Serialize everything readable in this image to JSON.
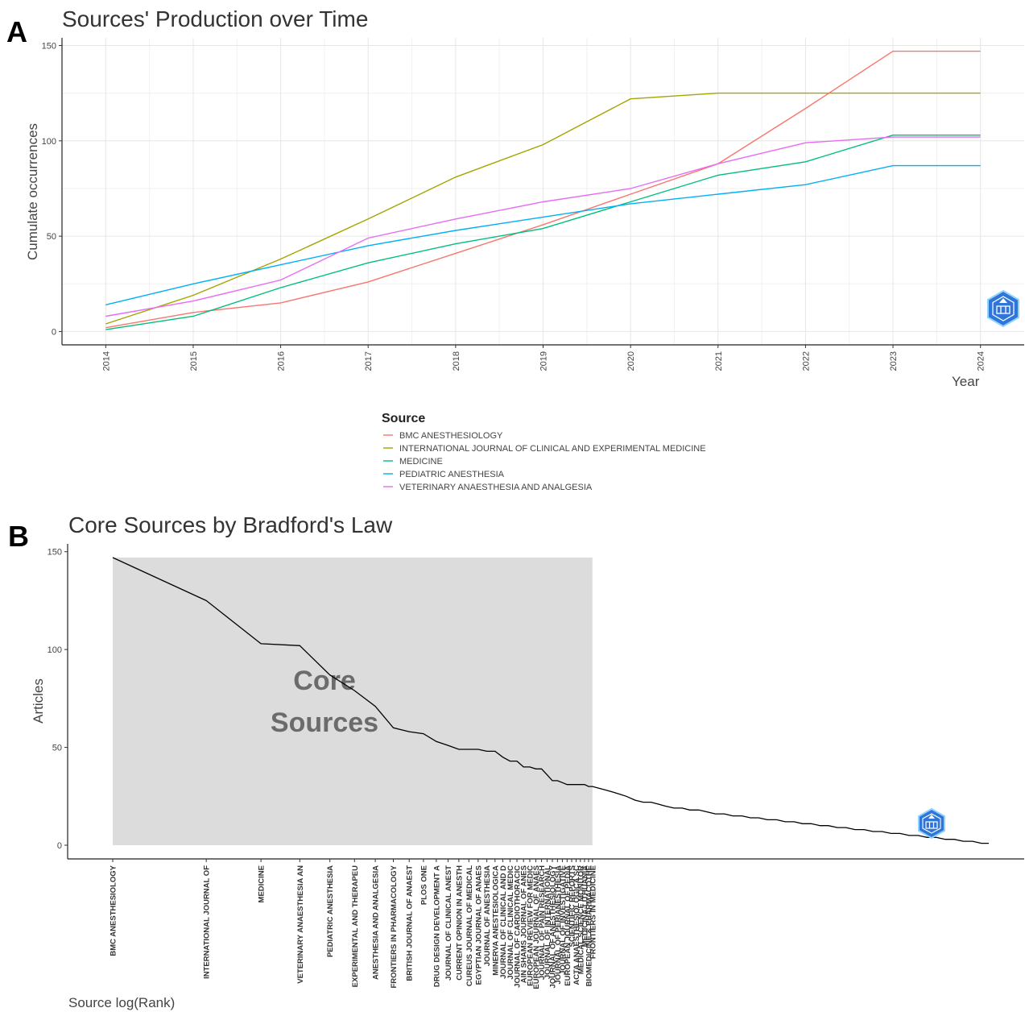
{
  "panels": {
    "a_letter": "A",
    "b_letter": "B"
  },
  "chart_data": [
    {
      "type": "line",
      "title": "Sources' Production over Time",
      "xlabel": "Year",
      "ylabel": "Cumulate occurrences",
      "x": [
        2014,
        2015,
        2016,
        2017,
        2018,
        2019,
        2020,
        2021,
        2022,
        2023,
        2024
      ],
      "x_tick_labels": [
        "2014",
        "2015",
        "2016",
        "2017",
        "2018",
        "2019",
        "2020",
        "2021",
        "2022",
        "2023",
        "2024"
      ],
      "y_ticks": [
        0,
        50,
        100,
        150
      ],
      "ylim": [
        -7,
        154
      ],
      "grid": true,
      "legend_title": "Source",
      "legend_position": "bottom",
      "series": [
        {
          "name": "BMC ANESTHESIOLOGY",
          "color": "#F8766D",
          "values": [
            2,
            10,
            15,
            26,
            41,
            56,
            72,
            88,
            117,
            147,
            147
          ]
        },
        {
          "name": "INTERNATIONAL JOURNAL OF CLINICAL AND EXPERIMENTAL MEDICINE",
          "color": "#A3A500",
          "values": [
            4,
            19,
            38,
            59,
            81,
            98,
            122,
            125,
            125,
            125,
            125
          ]
        },
        {
          "name": "MEDICINE",
          "color": "#00BF7D",
          "values": [
            1,
            8,
            23,
            36,
            46,
            54,
            68,
            82,
            89,
            103,
            103
          ]
        },
        {
          "name": "PEDIATRIC ANESTHESIA",
          "color": "#00B0F6",
          "values": [
            14,
            25,
            35,
            45,
            53,
            60,
            67,
            72,
            77,
            87,
            87
          ]
        },
        {
          "name": "VETERINARY ANAESTHESIA AND ANALGESIA",
          "color": "#E76BF3",
          "values": [
            8,
            16,
            27,
            49,
            59,
            68,
            75,
            88,
            99,
            102,
            102
          ]
        }
      ]
    },
    {
      "type": "line",
      "title": "Core Sources by Bradford's Law",
      "xlabel": "Source log(Rank)",
      "ylabel": "Articles",
      "x_scale": "log",
      "y_ticks": [
        0,
        50,
        100,
        150
      ],
      "ylim": [
        -7,
        154
      ],
      "core_zone_label_line1": "Core",
      "core_zone_label_line2": "Sources",
      "core_zone_color": "#dcdcdc",
      "core_zone_rank_range": [
        1,
        35
      ],
      "series": [
        {
          "name": "",
          "color": "#000000",
          "values": [
            147,
            125,
            103,
            102,
            87,
            79,
            71,
            60,
            58,
            57,
            53,
            51,
            49,
            49,
            49,
            48,
            48,
            45,
            43,
            43,
            40,
            40,
            39,
            39,
            36,
            33,
            33,
            32,
            31,
            31,
            31,
            31,
            31,
            30,
            30,
            29,
            28,
            27,
            26,
            25,
            23,
            22,
            22,
            21,
            20,
            19,
            19,
            18,
            18,
            17,
            16,
            16,
            15,
            15,
            14,
            14,
            13,
            13,
            12,
            12,
            11,
            11,
            10,
            10,
            9,
            9,
            8,
            8,
            7,
            7,
            6,
            6,
            5,
            5,
            4,
            4,
            3,
            3,
            2,
            2,
            1,
            1
          ]
        }
      ],
      "ranks": [
        1,
        2,
        3,
        4,
        5,
        6,
        7,
        8,
        9,
        10,
        11,
        12,
        13,
        14,
        15,
        16,
        17,
        18,
        19,
        20,
        21,
        22,
        23,
        24,
        25,
        26,
        27,
        28,
        29,
        30,
        31,
        32,
        33,
        34,
        35,
        37,
        39,
        41,
        43,
        45,
        48,
        51,
        54,
        57,
        60,
        64,
        68,
        72,
        77,
        82,
        87,
        93,
        99,
        106,
        113,
        120,
        128,
        137,
        146,
        156,
        166,
        177,
        189,
        201,
        215,
        229,
        245,
        262,
        280,
        299,
        320,
        342,
        366,
        391,
        418,
        447,
        478,
        511,
        547,
        585,
        625,
        660
      ],
      "source_labels": [
        "BMC ANESTHESIOLOGY",
        "INTERNATIONAL JOURNAL OF",
        "MEDICINE",
        "VETERINARY ANAESTHESIA AN",
        "PEDIATRIC ANESTHESIA",
        "EXPERIMENTAL AND THERAPEU",
        "ANESTHESIA AND ANALGESIA",
        "FRONTIERS IN PHARMACOLOGY",
        "BRITISH JOURNAL OF ANAEST",
        "PLOS ONE",
        "DRUG DESIGN DEVELOPMENT A",
        "JOURNAL OF CLINICAL ANEST",
        "CURRENT OPINION IN ANESTH",
        "CUREUS JOURNAL OF MEDICAL",
        "EGYPTIAN JOURNAL OF ANAES",
        "JOURNAL OF ANESTHESIA",
        "MINERVA ANESTESIOLOGICA",
        "JOURNAL OF CLINICAL AND D",
        "JOURNAL OF CLINICAL MEDIC",
        "JOURNAL OF CARDIOTHORACIC",
        "AIN SHAMS JOURNAL OF ANES",
        "EUROPEAN REVIEW FOR MEDIC",
        "EUROPEAN JOURNAL OF ANAES",
        "JOURNAL OF PAIN RESEARCH",
        "JOURNAL OF INTERNATIONAL",
        "JOURNAL OF ANESTHESIOLOGY",
        "JOURNAL OF PERIANESTHESIA",
        "JOURNAL OF INVESTIGATIVE",
        "EUROPEAN JOURNAL OF PEDIA",
        "SCIENTIFIC REPORTS",
        "ACTA ANAESTHESIOLOGICA SC",
        "MEDICAL SCIENCE MONITOR",
        "MEDICINA-LITHUANIA",
        "BIOMEDICINE & PHARMACOTHE",
        "FRONTIERS IN MEDICINE"
      ]
    }
  ]
}
